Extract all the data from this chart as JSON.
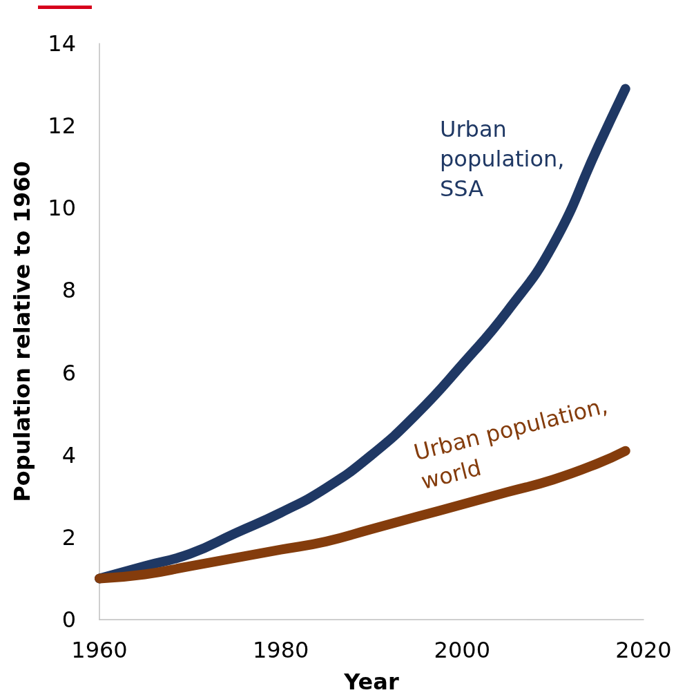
{
  "chart_data": {
    "type": "line",
    "xlabel": "Year",
    "ylabel": "Population relative to 1960",
    "x": [
      1960,
      1965,
      1970,
      1975,
      1980,
      1985,
      1990,
      1995,
      2000,
      2005,
      2010,
      2015,
      2018
    ],
    "series": [
      {
        "name": "Urban population, SSA",
        "color": "#1f3864",
        "values": [
          1.0,
          1.3,
          1.6,
          2.1,
          2.6,
          3.2,
          4.0,
          5.0,
          6.2,
          7.5,
          9.1,
          11.5,
          12.9
        ]
      },
      {
        "name": "Urban population, world",
        "color": "#843c0c",
        "values": [
          1.0,
          1.1,
          1.3,
          1.5,
          1.7,
          1.9,
          2.2,
          2.5,
          2.8,
          3.1,
          3.4,
          3.8,
          4.1
        ]
      }
    ],
    "xlim": [
      1960,
      2020
    ],
    "xticks": [
      1960,
      1980,
      2000,
      2020
    ],
    "ylim": [
      0,
      14
    ],
    "yticks": [
      0,
      2,
      4,
      6,
      8,
      10,
      12,
      14
    ]
  }
}
